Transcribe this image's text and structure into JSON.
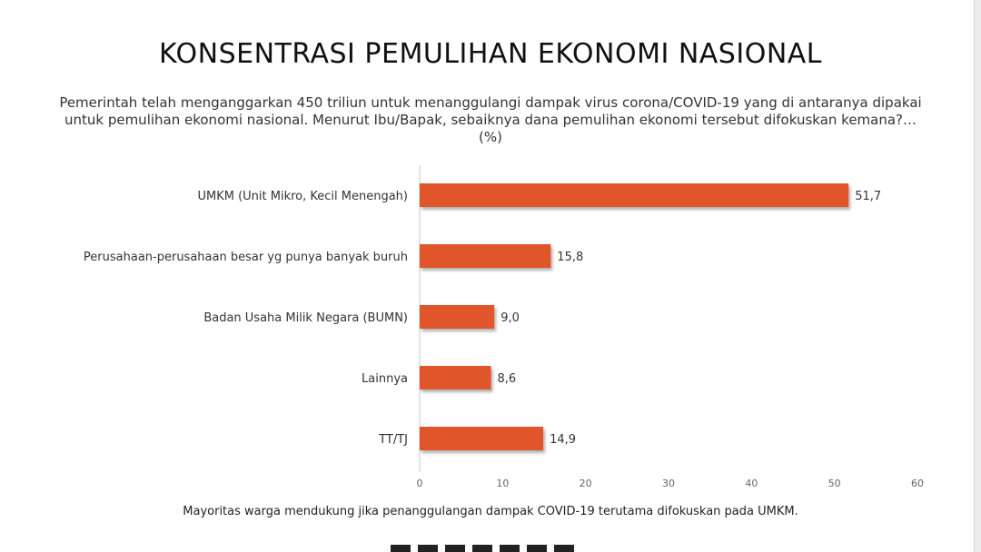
{
  "slide": {
    "title": "KONSENTRASI PEMULIHAN EKONOMI NASIONAL",
    "subtitle": "Pemerintah telah menganggarkan  450 triliun untuk menanggulangi dampak virus corona/COVID-19 yang di antaranya dipakai untuk pemulihan ekonomi nasional. Menurut Ibu/Bapak, sebaiknya dana pemulihan ekonomi tersebut difokuskan kemana?… (%)",
    "note": "Mayoritas warga mendukung jika penanggulangan dampak COVID-19 terutama difokuskan pada UMKM."
  },
  "colors": {
    "bar": "#e0552b",
    "axis": "#c8c8c8",
    "text": "#333333"
  },
  "chart_data": {
    "type": "bar",
    "orientation": "horizontal",
    "categories": [
      "UMKM (Unit Mikro, Kecil Menengah)",
      "Perusahaan-perusahaan besar yg punya banyak buruh",
      "Badan Usaha Milik Negara (BUMN)",
      "Lainnya",
      "TT/TJ"
    ],
    "values": [
      51.7,
      15.8,
      9.0,
      8.6,
      14.9
    ],
    "value_labels": [
      "51,7",
      "15,8",
      "9,0",
      "8,6",
      "14,9"
    ],
    "xlim": [
      0,
      60
    ],
    "xticks": [
      0,
      10,
      20,
      30,
      40,
      50,
      60
    ],
    "xlabel": "",
    "ylabel": "",
    "grid": false,
    "legend": "none"
  }
}
